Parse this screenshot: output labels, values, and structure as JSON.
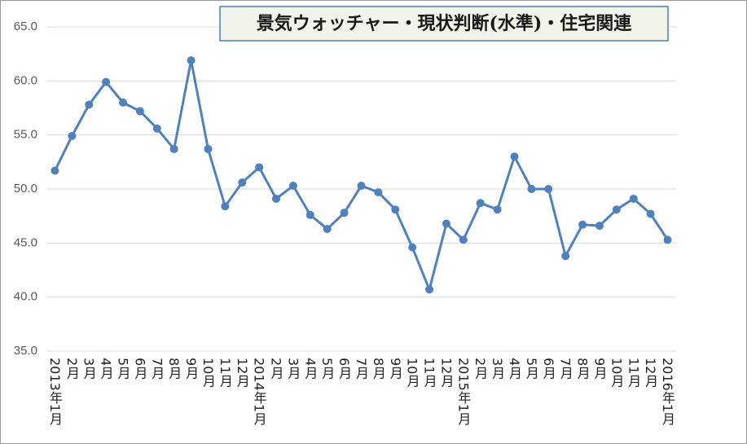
{
  "chart_data": {
    "type": "line",
    "title": "景気ウォッチャー・現状判断(水準)・住宅関連",
    "categories": [
      "2013年1月",
      "2月",
      "3月",
      "4月",
      "5月",
      "6月",
      "7月",
      "8月",
      "9月",
      "10月",
      "11月",
      "12月",
      "2014年1月",
      "2月",
      "3月",
      "4月",
      "5月",
      "6月",
      "7月",
      "8月",
      "9月",
      "10月",
      "11月",
      "12月",
      "2015年1月",
      "2月",
      "3月",
      "4月",
      "5月",
      "6月",
      "7月",
      "8月",
      "9月",
      "10月",
      "11月",
      "12月",
      "2016年1月"
    ],
    "series": [
      {
        "name": "住宅関連",
        "color": "#4f81bd",
        "values": [
          51.7,
          54.9,
          57.8,
          59.9,
          58.0,
          57.2,
          55.6,
          53.7,
          61.9,
          53.7,
          48.4,
          50.6,
          52.0,
          49.1,
          50.3,
          47.6,
          46.3,
          47.8,
          50.3,
          49.7,
          48.1,
          44.6,
          40.7,
          46.8,
          45.3,
          48.7,
          48.1,
          53.0,
          50.0,
          50.0,
          43.8,
          46.7,
          46.6,
          48.1,
          49.1,
          47.7,
          45.3
        ]
      }
    ],
    "ylim": [
      35,
      65
    ],
    "yticks": [
      {
        "value": 35,
        "label": "35.0"
      },
      {
        "value": 40,
        "label": "40.0"
      },
      {
        "value": 45,
        "label": "45.0"
      },
      {
        "value": 50,
        "label": "50.0"
      },
      {
        "value": 55,
        "label": "55.0"
      },
      {
        "value": 60,
        "label": "60.0"
      },
      {
        "value": 65,
        "label": "65.0"
      }
    ],
    "grid": true
  }
}
